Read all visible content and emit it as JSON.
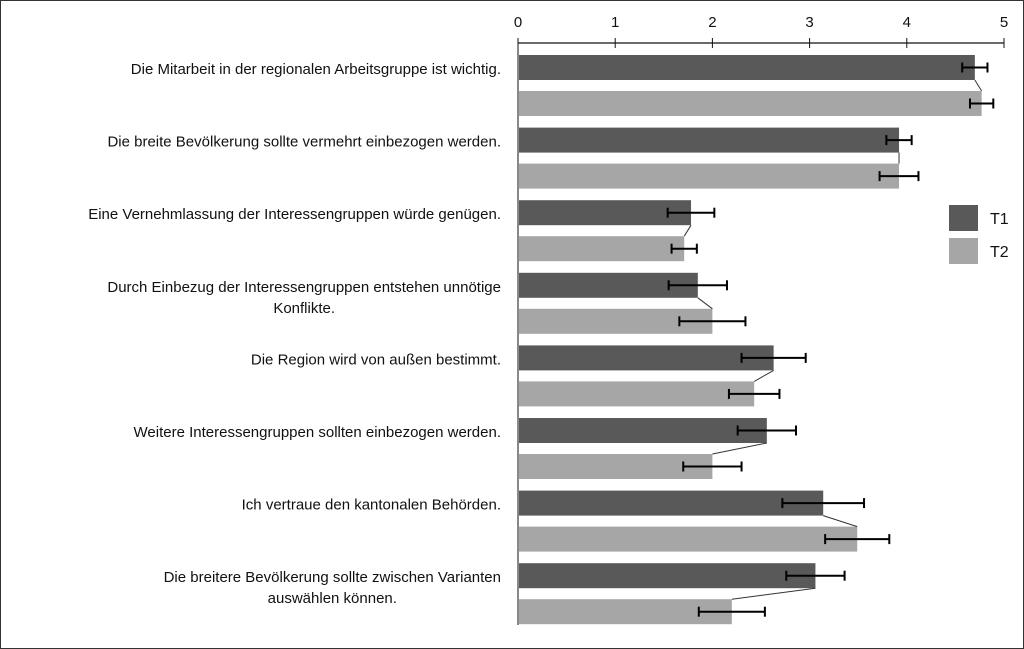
{
  "chart_data": {
    "type": "bar",
    "orientation": "horizontal",
    "categories": [
      [
        "Die Mitarbeit in der regionalen Arbeitsgruppe ist wichtig."
      ],
      [
        "Die breite Bevölkerung sollte vermehrt einbezogen werden."
      ],
      [
        "Eine Vernehmlassung der Interessengruppen würde genügen."
      ],
      [
        "Durch Einbezug der Interessengruppen entstehen unnötige",
        "Konflikte."
      ],
      [
        "Die Region wird von außen bestimmt."
      ],
      [
        "Weitere Interessengruppen sollten einbezogen werden."
      ],
      [
        "Ich vertraue den kantonalen Behörden."
      ],
      [
        "Die breitere Bevölkerung sollte zwischen Varianten",
        "auswählen können."
      ]
    ],
    "series": [
      {
        "name": "T1",
        "color": "#595959",
        "values": [
          4.7,
          3.92,
          1.78,
          1.85,
          2.63,
          2.56,
          3.14,
          3.06
        ],
        "error": [
          0.13,
          0.13,
          0.24,
          0.3,
          0.33,
          0.3,
          0.42,
          0.3
        ]
      },
      {
        "name": "T2",
        "color": "#a6a6a6",
        "values": [
          4.77,
          3.92,
          1.71,
          2.0,
          2.43,
          2.0,
          3.49,
          2.2
        ],
        "error": [
          0.12,
          0.2,
          0.13,
          0.34,
          0.26,
          0.3,
          0.33,
          0.34
        ]
      }
    ],
    "connector_lines": true,
    "xlim": [
      0,
      5
    ],
    "xticks": [
      0,
      1,
      2,
      3,
      4,
      5
    ],
    "axis_position": "top",
    "grid": false,
    "legend": {
      "position": "right",
      "entries": [
        "T1",
        "T2"
      ]
    }
  }
}
